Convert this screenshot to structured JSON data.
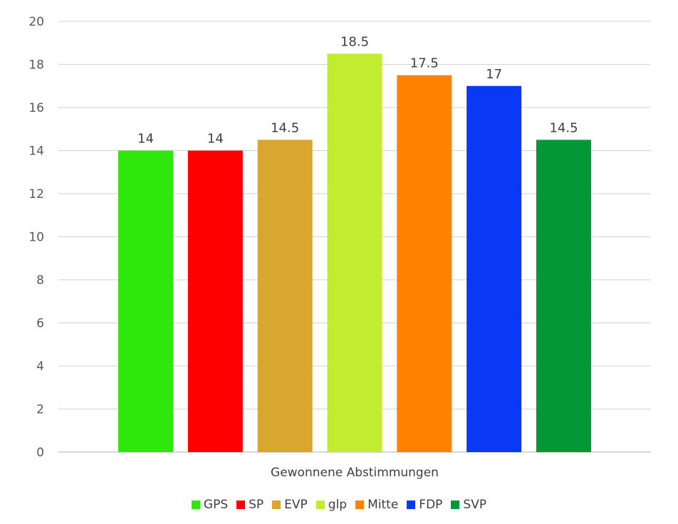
{
  "chart_data": {
    "type": "bar",
    "title": "",
    "xlabel": "Gewonnene Abstimmungen",
    "ylabel": "",
    "ylim": [
      0,
      20
    ],
    "y_ticks": [
      "0",
      "2",
      "4",
      "6",
      "8",
      "10",
      "12",
      "14",
      "16",
      "18",
      "20"
    ],
    "grid": true,
    "legend_position": "bottom",
    "series": [
      {
        "name": "GPS",
        "value": 14,
        "label": "14",
        "color": "#2EE80C"
      },
      {
        "name": "SP",
        "value": 14,
        "label": "14",
        "color": "#FF0000"
      },
      {
        "name": "EVP",
        "value": 14.5,
        "label": "14.5",
        "color": "#DAA72E"
      },
      {
        "name": "glp",
        "value": 18.5,
        "label": "18.5",
        "color": "#C2EC30"
      },
      {
        "name": "Mitte",
        "value": 17.5,
        "label": "17.5",
        "color": "#FF8200"
      },
      {
        "name": "FDP",
        "value": 17,
        "label": "17",
        "color": "#0A39F5"
      },
      {
        "name": "SVP",
        "value": 14.5,
        "label": "14.5",
        "color": "#019835"
      }
    ]
  }
}
